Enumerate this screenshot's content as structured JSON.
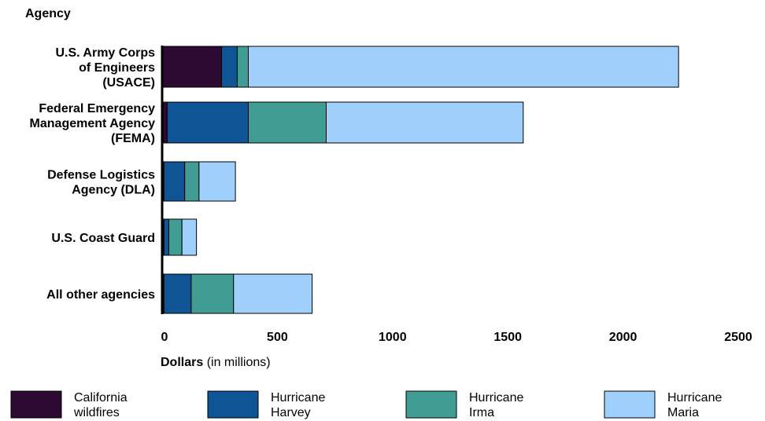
{
  "chart_data": {
    "type": "bar",
    "orientation": "horizontal",
    "stacked": true,
    "ylabel": "Agency",
    "xlabel": {
      "bold": "Dollars",
      "normal": " (in millions)"
    },
    "categories": [
      [
        "U.S. Army Corps",
        "of Engineers",
        "(USACE)"
      ],
      [
        "Federal Emergency",
        "Management Agency",
        "(FEMA)"
      ],
      [
        "Defense Logistics",
        "Agency (DLA)"
      ],
      [
        "U.S. Coast Guard"
      ],
      [
        "All other agencies"
      ]
    ],
    "xlim": [
      0,
      2500
    ],
    "xticks": [
      0,
      500,
      1000,
      1500,
      2000,
      2500
    ],
    "grid": false,
    "legend_position": "bottom",
    "series": [
      {
        "name": [
          "California",
          "wildfires"
        ],
        "color": "#2d0a32",
        "values": [
          258,
          22,
          8,
          8,
          8
        ]
      },
      {
        "name": [
          "Hurricane",
          "Harvey"
        ],
        "color": "#0f5596",
        "values": [
          68,
          352,
          90,
          21,
          118
        ]
      },
      {
        "name": [
          "Hurricane",
          "Irma"
        ],
        "color": "#419c94",
        "values": [
          48,
          338,
          62,
          57,
          184
        ]
      },
      {
        "name": [
          "Hurricane",
          "Maria"
        ],
        "color": "#9fcffb",
        "values": [
          1867,
          855,
          158,
          63,
          341
        ]
      }
    ]
  }
}
